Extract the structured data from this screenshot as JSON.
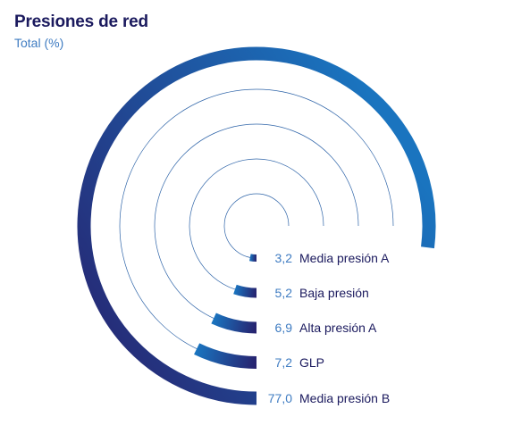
{
  "header": {
    "title": "Presiones de red",
    "subtitle": "Total (%)"
  },
  "colors": {
    "start": "#27226e",
    "end": "#1a74bf",
    "track": "#2e64a8",
    "value_text": "#3f7cc2",
    "label_text": "#1b1a5e"
  },
  "chart_data": {
    "type": "radial-bar",
    "title": "Presiones de red",
    "subtitle": "Total (%)",
    "unit": "%",
    "max": 100,
    "series": [
      {
        "label": "Media presión A",
        "value_text": "3,2",
        "value": 3.2
      },
      {
        "label": "Baja presión",
        "value_text": "5,2",
        "value": 5.2
      },
      {
        "label": "Alta presión A",
        "value_text": "6,9",
        "value": 6.9
      },
      {
        "label": "GLP",
        "value_text": "7,2",
        "value": 7.2
      },
      {
        "label": "Media presión B",
        "value_text": "77,0",
        "value": 77.0
      }
    ]
  }
}
